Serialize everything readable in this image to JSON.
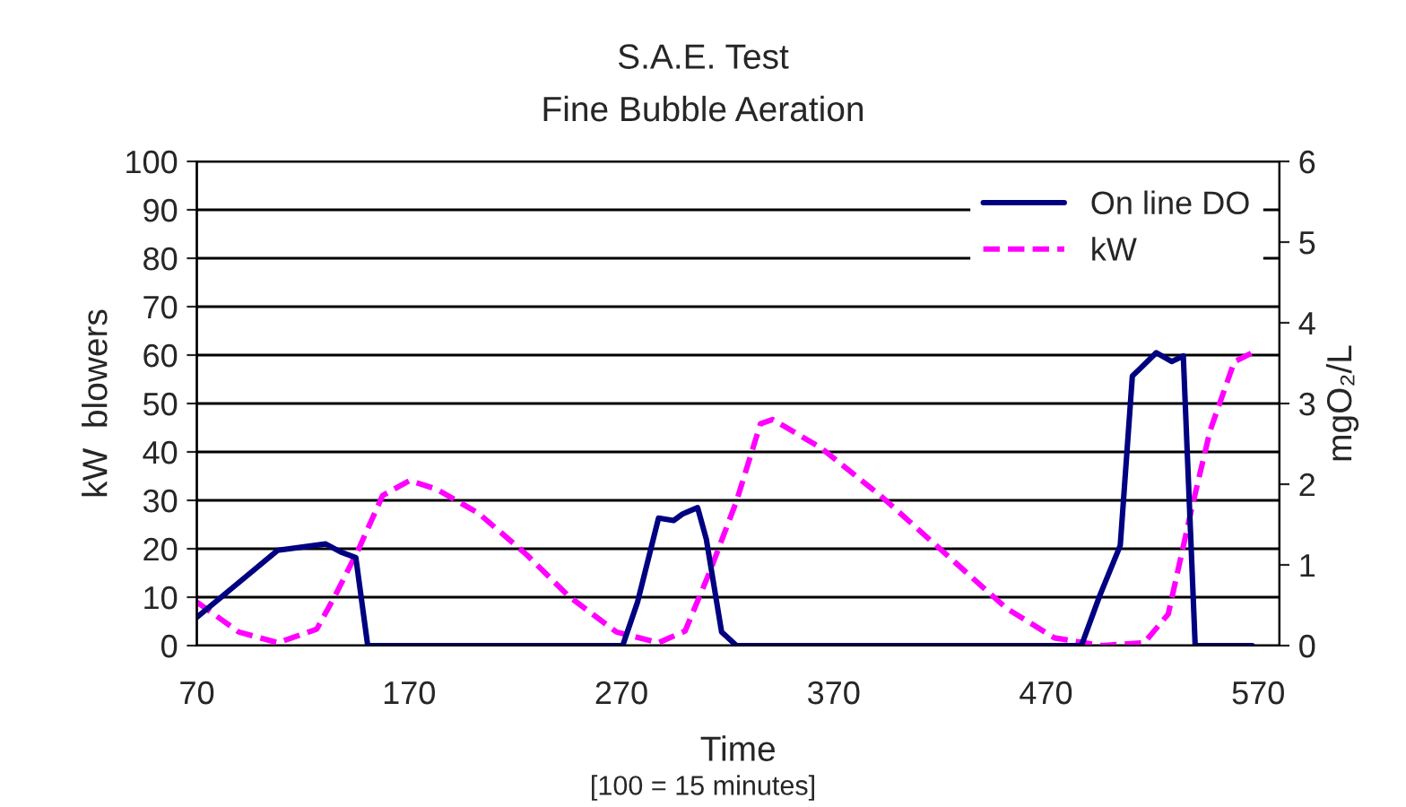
{
  "chart_data": {
    "type": "line",
    "title": "S.A.E. Test",
    "subtitle": "Fine Bubble Aeration",
    "xlabel": "Time",
    "ylabel": "kW  blowers",
    "y2label": "mgO₂/L",
    "annotations": [
      "[100 = 15 minutes]"
    ],
    "xlim": [
      70,
      580
    ],
    "xticks": [
      70,
      170,
      270,
      370,
      470,
      570
    ],
    "ylim": [
      0,
      100
    ],
    "yticks": [
      0,
      10,
      20,
      30,
      40,
      50,
      60,
      70,
      80,
      90,
      100
    ],
    "y2lim": [
      0,
      6
    ],
    "y2ticks": [
      0,
      1,
      2,
      3,
      4,
      5,
      6
    ],
    "grid": "y",
    "legend": "top right",
    "series": [
      {
        "name": "On line DO",
        "color": "#000080",
        "axis": "y2",
        "line_style": "solid",
        "x": [
          70,
          108,
          130.7,
          137.8,
          144.9,
          150.5,
          270.6,
          277.6,
          287.5,
          294.6,
          298.8,
          305.9,
          310,
          317.2,
          324.2,
          486.7,
          495.2,
          505,
          510.7,
          522,
          529.2,
          534.7,
          540.3,
          567.2
        ],
        "values": [
          0.35,
          1.18,
          1.26,
          1.16,
          1.09,
          0,
          0,
          0.54,
          1.58,
          1.55,
          1.63,
          1.71,
          1.32,
          0.17,
          0,
          0,
          0.61,
          1.24,
          3.34,
          3.63,
          3.52,
          3.59,
          0,
          0
        ]
      },
      {
        "name": "kW",
        "color": "#ff00ff",
        "line_style": "dashed",
        "x": [
          70,
          89.8,
          108.1,
          126.5,
          135,
          146.3,
          157.5,
          170.3,
          183,
          202.8,
          225.3,
          245.2,
          267.7,
          287.5,
          300,
          311.5,
          324.2,
          335.5,
          341.2,
          363.8,
          392,
          423.1,
          451.4,
          474,
          496.5,
          516.3,
          527.6,
          538.8,
          547.4,
          558.7,
          567.2
        ],
        "values": [
          9.0,
          2.8,
          0.6,
          3.4,
          10.2,
          20.0,
          31.0,
          34.1,
          32.3,
          27.3,
          18.8,
          10.2,
          2.8,
          0.6,
          3.0,
          15.1,
          29.8,
          45.8,
          46.7,
          40.9,
          31.0,
          18.8,
          7.7,
          1.6,
          0,
          0.6,
          6.5,
          28.6,
          44.5,
          58.6,
          60.5
        ]
      }
    ]
  }
}
